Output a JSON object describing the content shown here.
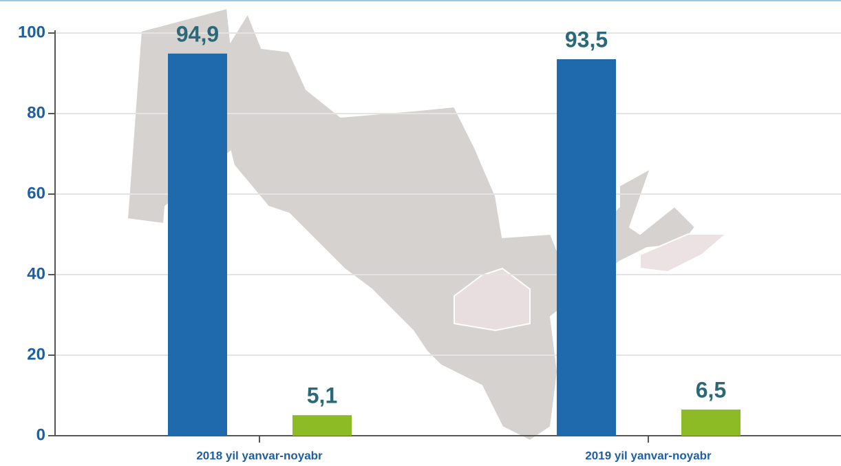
{
  "chart_data": {
    "type": "bar",
    "categories": [
      "2018 yil yanvar-noyabr",
      "2019 yil yanvar-noyabr"
    ],
    "series": [
      {
        "color": "#1f6aad",
        "values": [
          94.9,
          93.5
        ],
        "value_labels": [
          "94,9",
          "93,5"
        ]
      },
      {
        "color": "#8dbb25",
        "values": [
          5.1,
          6.5
        ],
        "value_labels": [
          "5,1",
          "6,5"
        ]
      }
    ],
    "ylim": [
      0,
      100
    ],
    "yticks": [
      0,
      20,
      40,
      60,
      80,
      100
    ],
    "grid": true
  }
}
